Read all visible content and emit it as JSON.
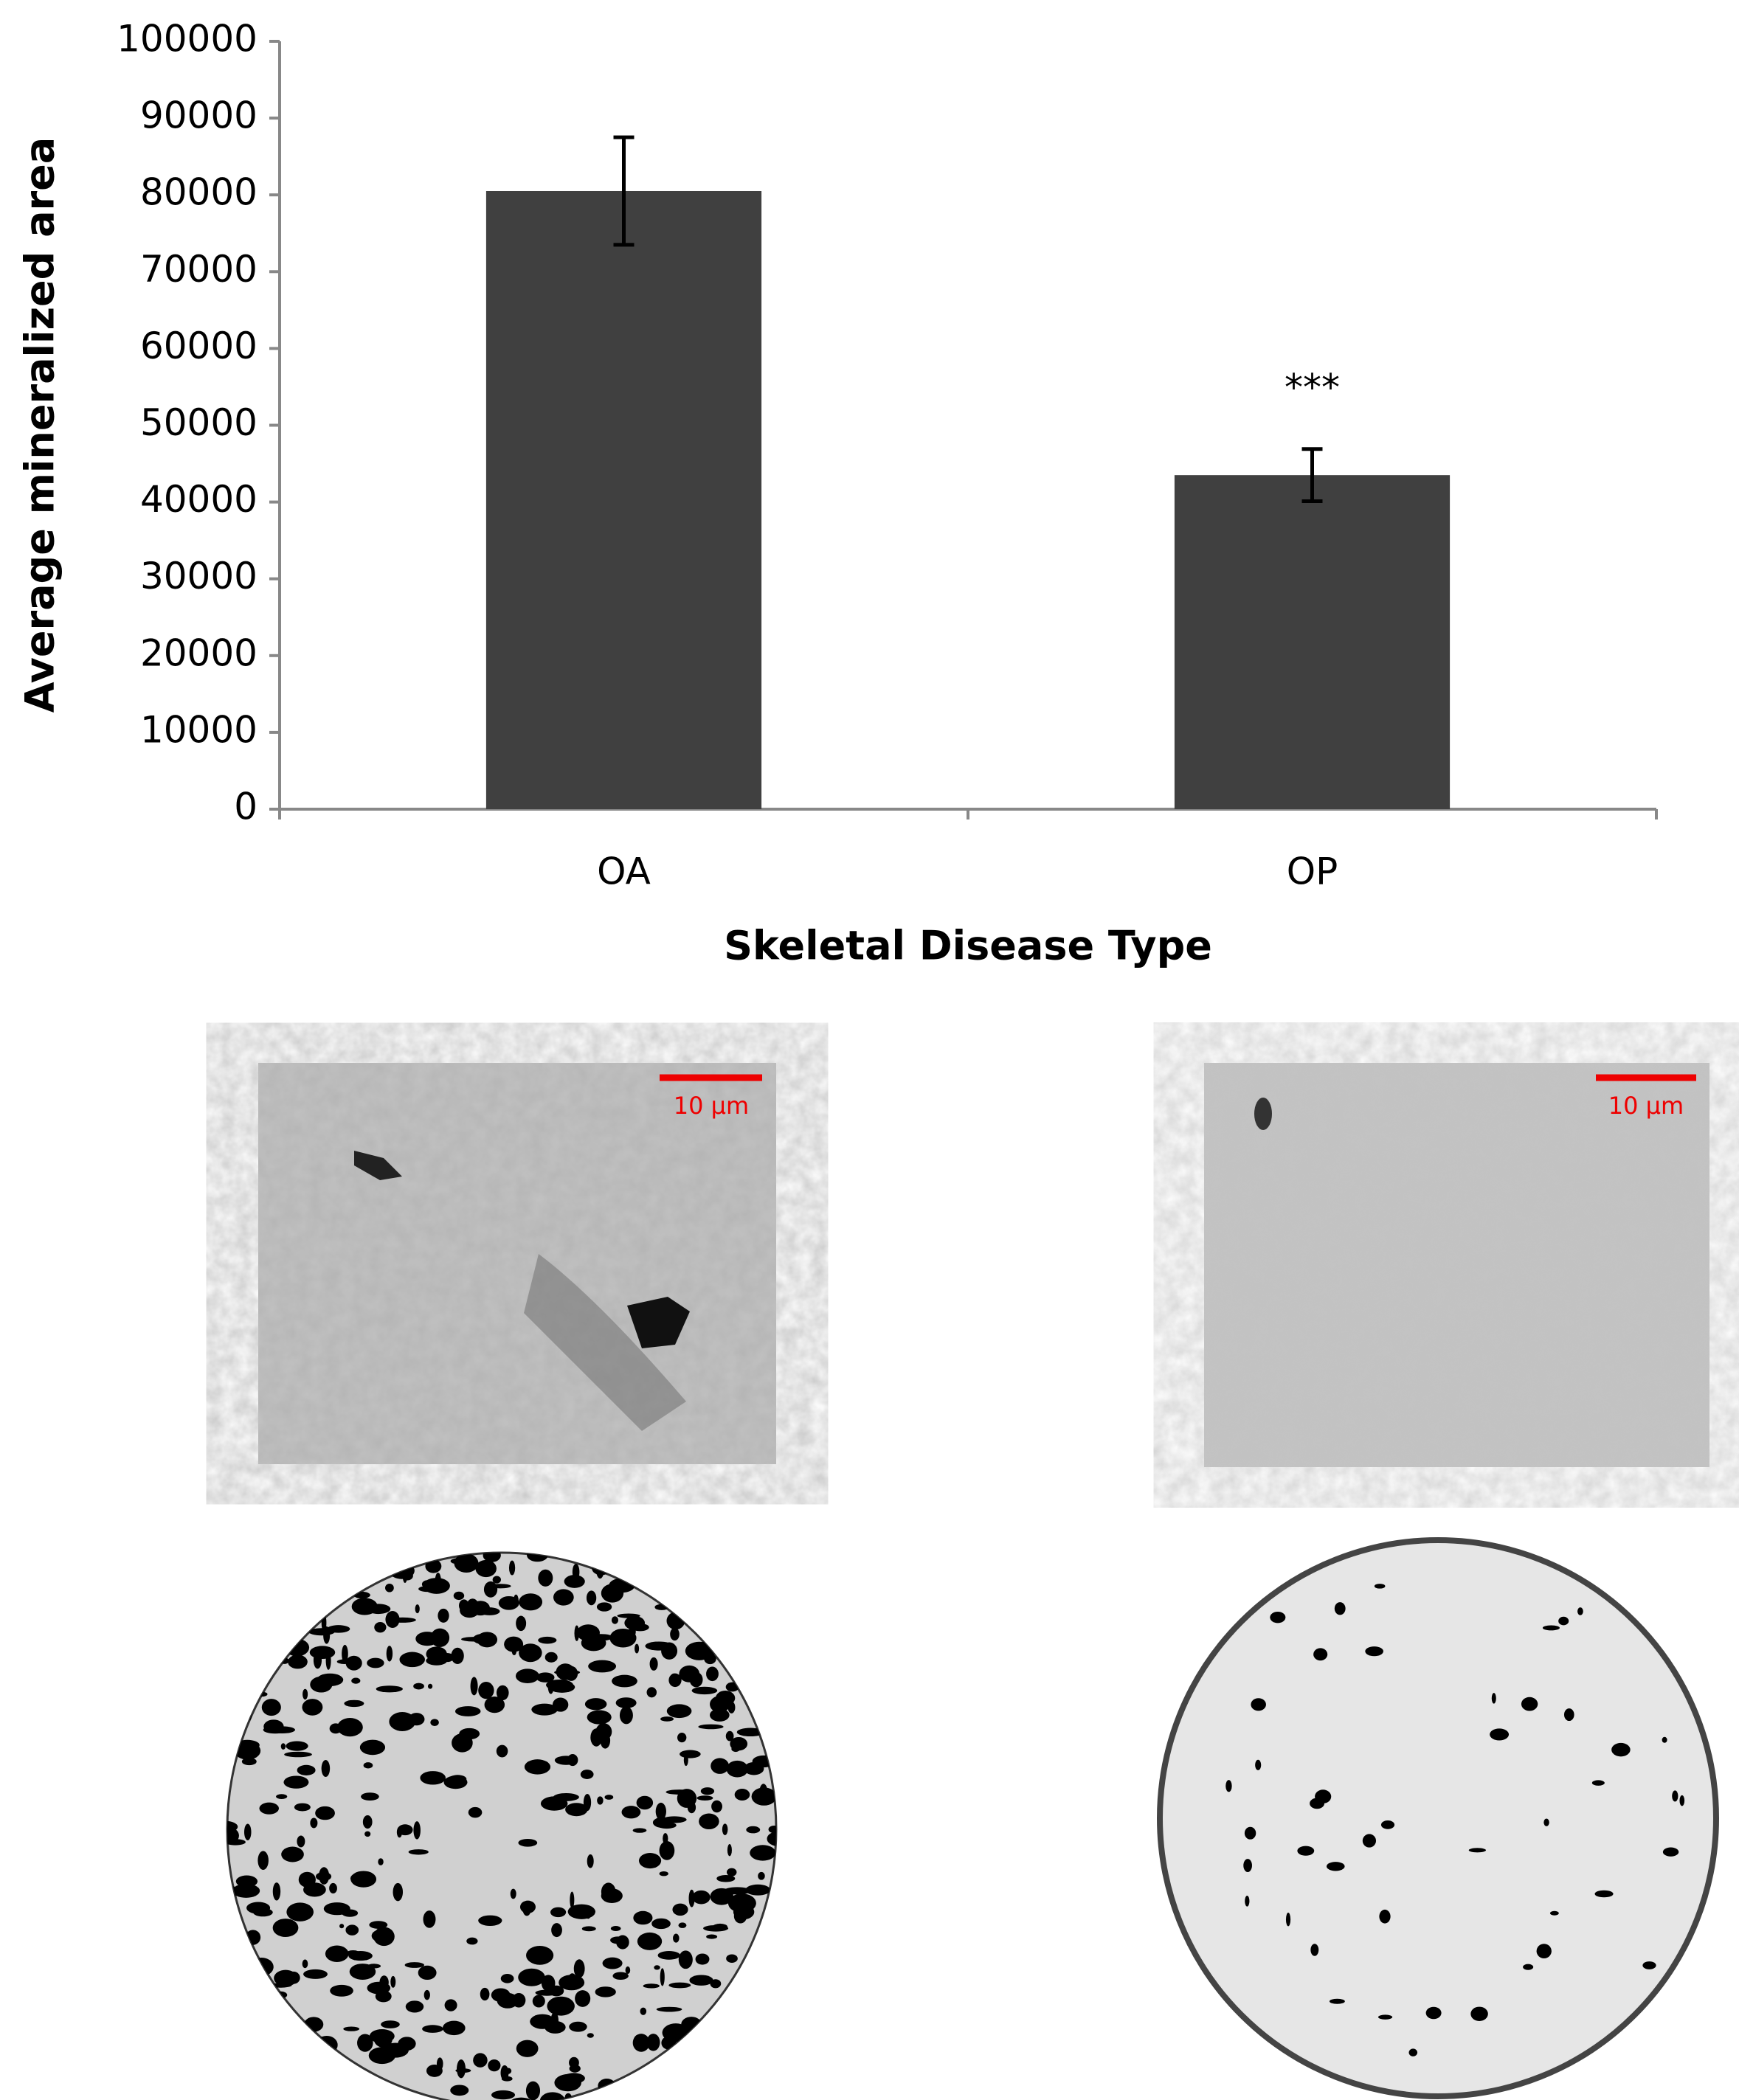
{
  "chart_data": {
    "type": "bar",
    "categories": [
      "OA",
      "OP"
    ],
    "values": [
      80500,
      43500
    ],
    "errors": [
      7000,
      3400
    ],
    "color": "#404040",
    "ylim": [
      0,
      100000
    ],
    "yticks": [
      0,
      10000,
      20000,
      30000,
      40000,
      50000,
      60000,
      70000,
      80000,
      90000,
      100000
    ],
    "ylabel": "Average mineralized area",
    "xlabel": "Skeletal Disease Type",
    "annotations": [
      {
        "text": "***",
        "category": "OP"
      }
    ]
  },
  "panels": [
    {
      "scale_bar": "10 μm"
    },
    {
      "scale_bar": "10 μm"
    }
  ]
}
